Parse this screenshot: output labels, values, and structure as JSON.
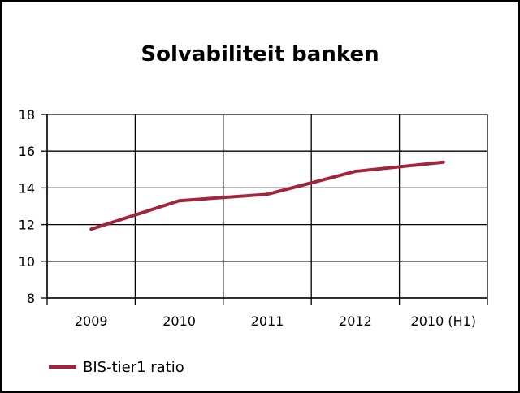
{
  "chart_data": {
    "type": "line",
    "title": "Solvabiliteit banken",
    "categories": [
      "2009",
      "2010",
      "2011",
      "2012",
      "2010 (H1)"
    ],
    "series": [
      {
        "name": "BIS-tier1 ratio",
        "values": [
          11.75,
          13.3,
          13.65,
          14.9,
          15.4
        ],
        "color": "#a3243b"
      }
    ],
    "ylim": [
      8,
      18
    ],
    "yticks": [
      "8",
      "10",
      "12",
      "14",
      "16",
      "18"
    ],
    "grid": true,
    "legend": "bottom-left"
  }
}
